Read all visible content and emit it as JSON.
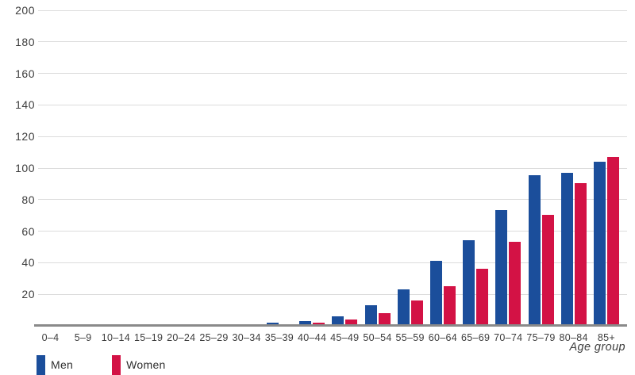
{
  "chart_data": {
    "type": "bar",
    "title": "",
    "xlabel": "Age group",
    "ylabel": "",
    "categories": [
      "0–4",
      "5–9",
      "10–14",
      "15–19",
      "20–24",
      "25–29",
      "30–34",
      "35–39",
      "40–44",
      "45–49",
      "50–54",
      "55–59",
      "60–64",
      "65–69",
      "70–74",
      "75–79",
      "80–84",
      "85+"
    ],
    "series": [
      {
        "name": "Men",
        "color": "#1b4e9b",
        "values": [
          0,
          0,
          0,
          0,
          0,
          0,
          0.5,
          2,
          3,
          6,
          13,
          23,
          41,
          54,
          73,
          95,
          97,
          104
        ]
      },
      {
        "name": "Women",
        "color": "#d31245",
        "values": [
          0,
          0,
          0,
          0,
          0,
          0,
          1,
          1,
          2,
          4,
          8,
          16,
          25,
          36,
          53,
          70,
          90,
          107
        ]
      }
    ],
    "ylim": [
      0,
      200
    ],
    "yticks": [
      20,
      40,
      60,
      80,
      100,
      120,
      140,
      160,
      180,
      200
    ],
    "grid": true,
    "legend_position": "bottom-left"
  },
  "colors": {
    "men_bar": "#1b4e9b",
    "women_bar": "#d31245",
    "gridline": "#dcdcdc",
    "axis_line": "#8a8a8a",
    "text": "#3d3d3d",
    "background": "#ffffff"
  }
}
